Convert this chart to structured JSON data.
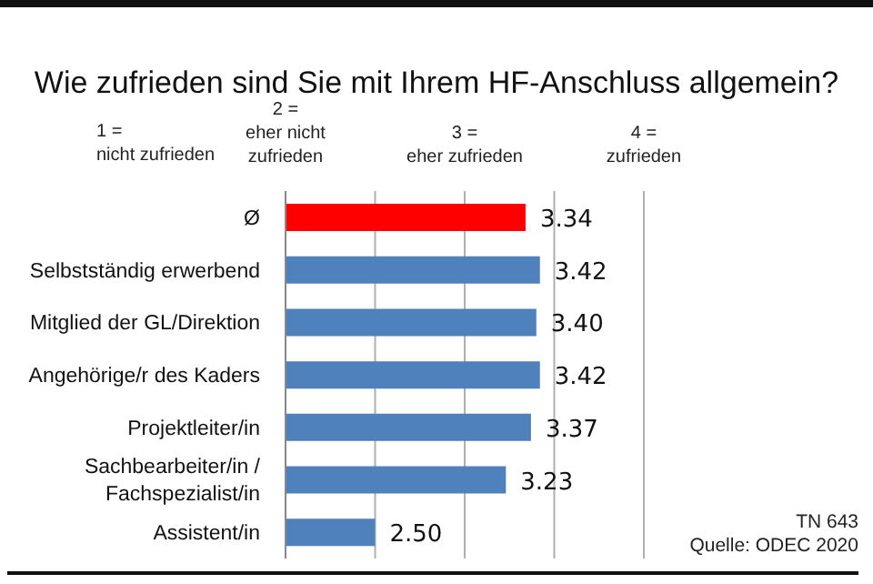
{
  "chart_data": {
    "type": "bar",
    "orientation": "horizontal",
    "title": "Wie zufrieden sind Sie mit Ihrem HF-Anschluss allgemein?",
    "categories": [
      "Ø",
      "Selbstständig erwerbend",
      "Mitglied der GL/Direktion",
      "Angehörige/r des Kaders",
      "Projektleiter/in",
      "Sachbearbeiter/in / Fachspezialist/in",
      "Assistent/in"
    ],
    "values": [
      3.34,
      3.42,
      3.4,
      3.42,
      3.37,
      3.23,
      2.5
    ],
    "colors": [
      "#ff0000",
      "#4f81bd",
      "#4f81bd",
      "#4f81bd",
      "#4f81bd",
      "#4f81bd",
      "#4f81bd"
    ],
    "value_labels": [
      "3.34",
      "3.42",
      "3.40",
      "3.42",
      "3.37",
      "3.23",
      "2.50"
    ],
    "xlim": [
      2,
      4
    ],
    "xticks": [
      {
        "value": 2,
        "label": "2 =\neher nicht\nzufrieden"
      },
      {
        "value": 2.5,
        "label": null
      },
      {
        "value": 3,
        "label": "3 =\neher zufrieden"
      },
      {
        "value": 3.5,
        "label": null
      },
      {
        "value": 4,
        "label": "4 =\nzufrieden"
      }
    ],
    "grid": "x",
    "legend": false,
    "annotations": [
      "1 =\nnicht zufrieden",
      "TN 643",
      "Quelle: ODEC 2020"
    ]
  }
}
